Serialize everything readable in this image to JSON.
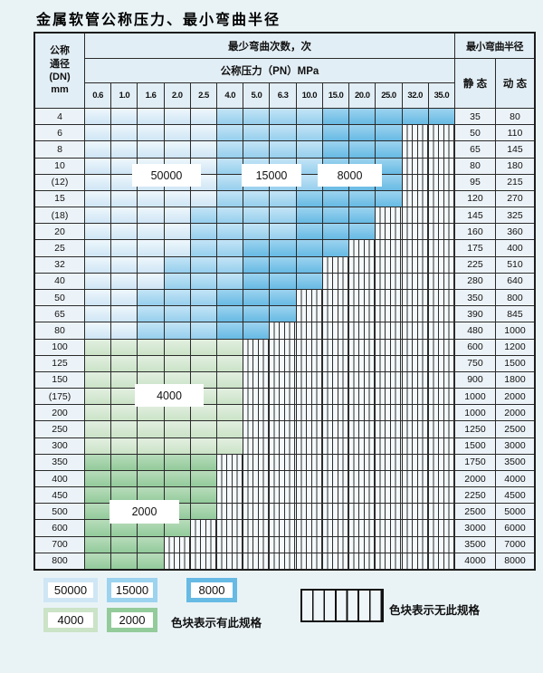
{
  "title": "金属软管公称压力、最小弯曲半径",
  "table": {
    "corner_header_lines": [
      "公称",
      "通径",
      "(DN)",
      "mm"
    ],
    "cycles_header": "最少弯曲次数，次",
    "radius_header": "最小弯曲半径",
    "pressure_header": "公称压力（PN）MPa",
    "static_label": "静 态",
    "dynamic_label": "动 态",
    "pressure_columns": [
      "0.6",
      "1.0",
      "1.6",
      "2.0",
      "2.5",
      "4.0",
      "5.0",
      "6.3",
      "10.0",
      "15.0",
      "20.0",
      "25.0",
      "32.0",
      "35.0"
    ],
    "cell_legend": {
      "A": "50000",
      "B": "15000",
      "C": "8000",
      "D": "4000",
      "E": "2000",
      "S": "no-spec-striped"
    },
    "rows": [
      {
        "dn": "4",
        "cells": "AAAAABBBBCCCCC",
        "static": "35",
        "dynamic": "80"
      },
      {
        "dn": "6",
        "cells": "AAAAABBBBCCCSS",
        "static": "50",
        "dynamic": "110"
      },
      {
        "dn": "8",
        "cells": "AAAAABBBBCCCSS",
        "static": "65",
        "dynamic": "145"
      },
      {
        "dn": "10",
        "cells": "AAAAABBBBCCCSS",
        "static": "80",
        "dynamic": "180"
      },
      {
        "dn": "(12)",
        "cells": "AAAAABBBBCCCSS",
        "static": "95",
        "dynamic": "215"
      },
      {
        "dn": "15",
        "cells": "AAAAABBBCCCCSS",
        "static": "120",
        "dynamic": "270"
      },
      {
        "dn": "(18)",
        "cells": "AAAABBBBCCCSSS",
        "static": "145",
        "dynamic": "325"
      },
      {
        "dn": "20",
        "cells": "AAAABBBBCCCSSS",
        "static": "160",
        "dynamic": "360"
      },
      {
        "dn": "25",
        "cells": "AAAABBCCCCSSSS",
        "static": "175",
        "dynamic": "400"
      },
      {
        "dn": "32",
        "cells": "AAABBBCCCSSSSS",
        "static": "225",
        "dynamic": "510"
      },
      {
        "dn": "40",
        "cells": "AAABBBCCCSSSSS",
        "static": "280",
        "dynamic": "640"
      },
      {
        "dn": "50",
        "cells": "AABBBCCCSSSSSS",
        "static": "350",
        "dynamic": "800"
      },
      {
        "dn": "65",
        "cells": "AABBBCCCSSSSSS",
        "static": "390",
        "dynamic": "845"
      },
      {
        "dn": "80",
        "cells": "AABBBCCSSSSSSS",
        "static": "480",
        "dynamic": "1000"
      },
      {
        "dn": "100",
        "cells": "DDDDDDSSSSSSSS",
        "static": "600",
        "dynamic": "1200"
      },
      {
        "dn": "125",
        "cells": "DDDDDDSSSSSSSS",
        "static": "750",
        "dynamic": "1500"
      },
      {
        "dn": "150",
        "cells": "DDDDDDSSSSSSSS",
        "static": "900",
        "dynamic": "1800"
      },
      {
        "dn": "(175)",
        "cells": "DDDDDDSSSSSSSS",
        "static": "1000",
        "dynamic": "2000"
      },
      {
        "dn": "200",
        "cells": "DDDDDDSSSSSSSS",
        "static": "1000",
        "dynamic": "2000"
      },
      {
        "dn": "250",
        "cells": "DDDDDDSSSSSSSS",
        "static": "1250",
        "dynamic": "2500"
      },
      {
        "dn": "300",
        "cells": "DDDDDDSSSSSSSS",
        "static": "1500",
        "dynamic": "3000"
      },
      {
        "dn": "350",
        "cells": "EEEEESSSSSSSSS",
        "static": "1750",
        "dynamic": "3500"
      },
      {
        "dn": "400",
        "cells": "EEEEESSSSSSSSS",
        "static": "2000",
        "dynamic": "4000"
      },
      {
        "dn": "450",
        "cells": "EEEEESSSSSSSSS",
        "static": "2250",
        "dynamic": "4500"
      },
      {
        "dn": "500",
        "cells": "EEEEESSSSSSSSS",
        "static": "2500",
        "dynamic": "5000"
      },
      {
        "dn": "600",
        "cells": "EEEESSSSSSSSSS",
        "static": "3000",
        "dynamic": "6000"
      },
      {
        "dn": "700",
        "cells": "EEESSSSSSSSSSS",
        "static": "3500",
        "dynamic": "7000"
      },
      {
        "dn": "800",
        "cells": "EEESSSSSSSSSSS",
        "static": "4000",
        "dynamic": "8000"
      }
    ]
  },
  "overlay_labels": {
    "l50000": "50000",
    "l15000": "15000",
    "l8000": "8000",
    "l4000": "4000",
    "l2000": "2000"
  },
  "legend": {
    "sw50000": "50000",
    "sw15000": "15000",
    "sw8000": "8000",
    "sw4000": "4000",
    "sw2000": "2000",
    "note_colored": "色块表示有此规格",
    "note_striped": "色块表示无此规格"
  },
  "colors": {
    "page_bg": "#e9f3f6",
    "grid_line": "#2a2a2a",
    "header_bg": "#e2eef5",
    "label_cell_bg": "#ecf3f8",
    "zone_50000": "#cfe6f5",
    "zone_15000": "#96cfed",
    "zone_8000": "#67bae4",
    "zone_4000": "#cbe3c7",
    "zone_2000": "#93cb9b",
    "striped_fill": "#f4f9fc"
  }
}
